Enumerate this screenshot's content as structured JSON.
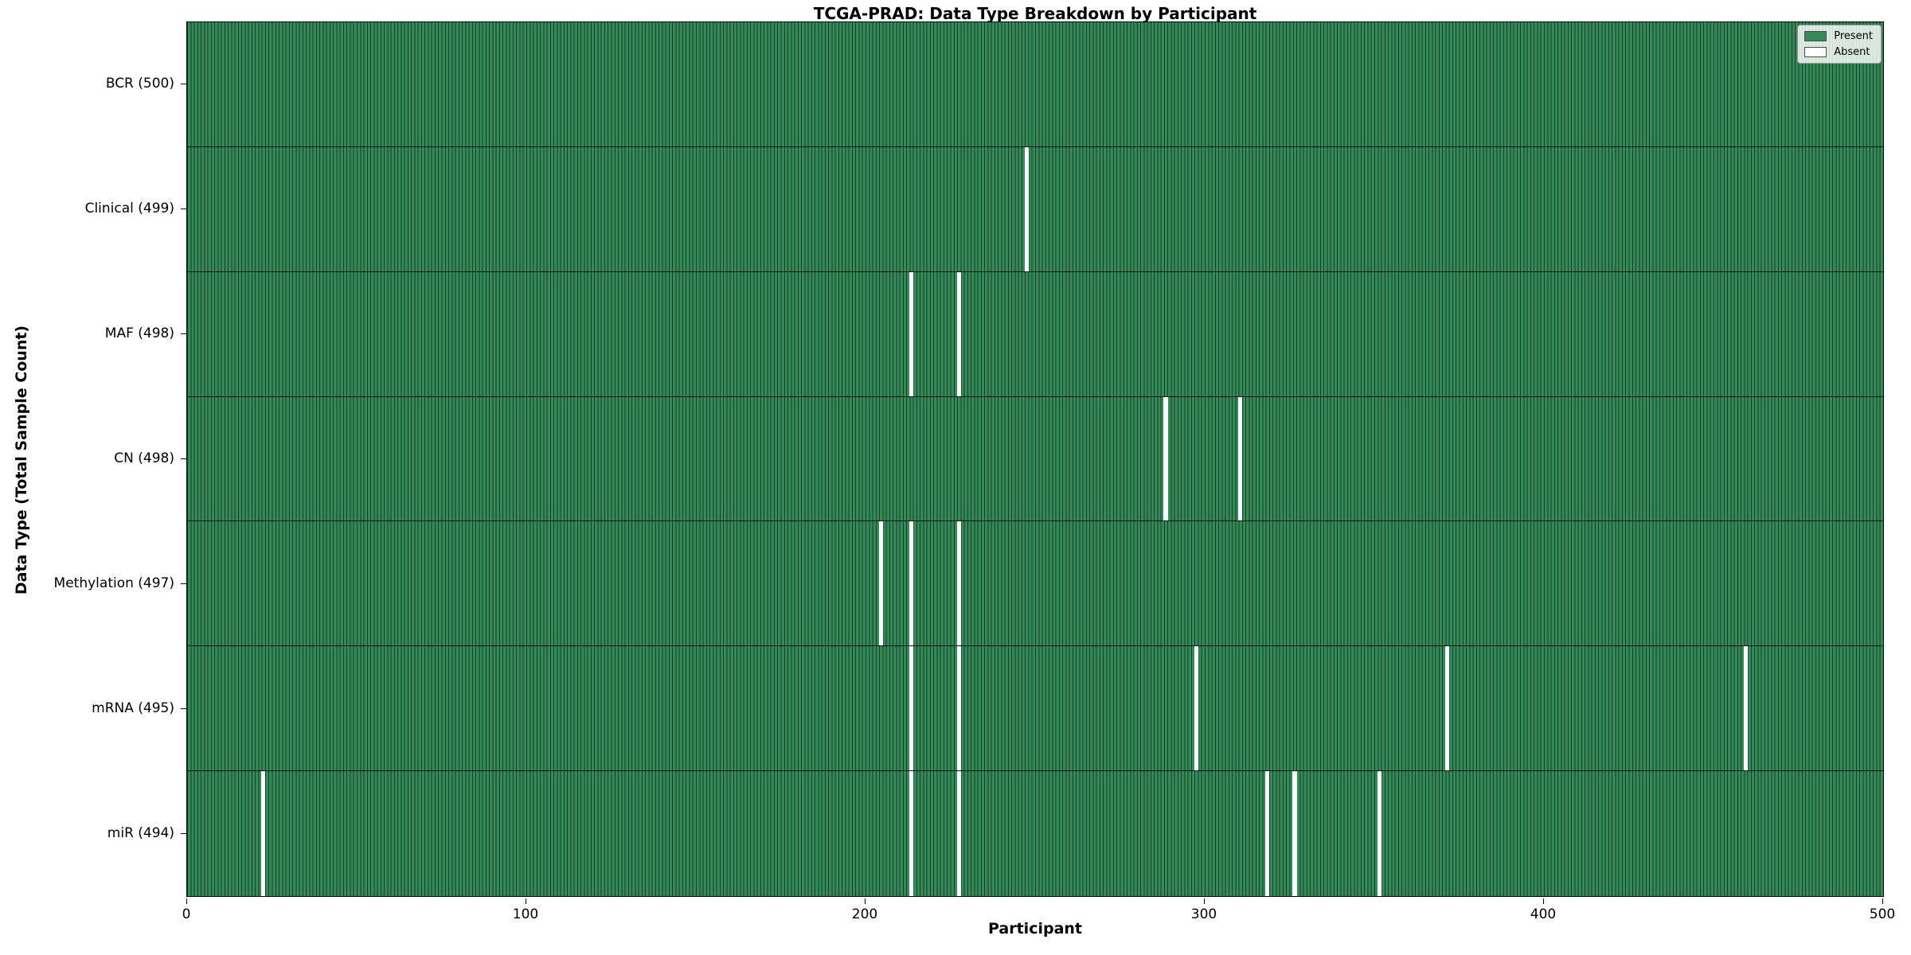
{
  "title": "TCGA-PRAD: Data Type Breakdown by Participant",
  "axes": {
    "x_label": "Participant",
    "y_label": "Data Type (Total Sample Count)"
  },
  "legend": {
    "present_label": "Present",
    "absent_label": "Absent"
  },
  "colors": {
    "present_fill": "#348a59",
    "bar_edge": "rgba(0,0,0,0.55)",
    "absent_fill": "#ffffff",
    "row_separator": "rgba(0,0,0,0.85)",
    "plot_border": "#000000"
  },
  "chart_data": {
    "type": "heatmap",
    "title": "TCGA-PRAD: Data Type Breakdown by Participant",
    "xlabel": "Participant",
    "ylabel": "Data Type (Total Sample Count)",
    "x_range": [
      0,
      500
    ],
    "x_ticks": [
      0,
      100,
      200,
      300,
      400,
      500
    ],
    "n_participants": 500,
    "legend_entries": [
      "Present",
      "Absent"
    ],
    "legend_position": "upper right",
    "grid": false,
    "rows": [
      {
        "name": "BCR",
        "label": "BCR (500)",
        "total": 500,
        "absent_indices": []
      },
      {
        "name": "Clinical",
        "label": "Clinical (499)",
        "total": 499,
        "absent_indices": [
          247
        ]
      },
      {
        "name": "MAF",
        "label": "MAF (498)",
        "total": 498,
        "absent_indices": [
          213,
          227
        ]
      },
      {
        "name": "CN",
        "label": "CN (498)",
        "total": 498,
        "absent_indices": [
          288,
          310
        ]
      },
      {
        "name": "Methylation",
        "label": "Methylation (497)",
        "total": 497,
        "absent_indices": [
          204,
          213,
          227
        ]
      },
      {
        "name": "mRNA",
        "label": "mRNA (495)",
        "total": 495,
        "absent_indices": [
          213,
          227,
          297,
          371,
          459
        ]
      },
      {
        "name": "miR",
        "label": "miR (494)",
        "total": 494,
        "absent_indices": [
          22,
          213,
          227,
          318,
          326,
          351
        ]
      }
    ]
  }
}
